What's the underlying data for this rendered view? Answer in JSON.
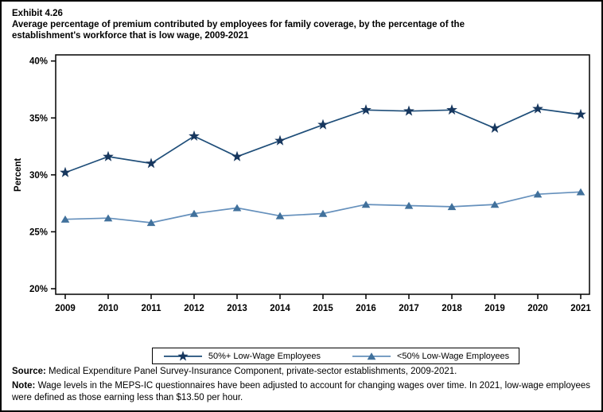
{
  "header": {
    "exhibit_label": "Exhibit 4.26",
    "title": "Average percentage of premium contributed by employees for family coverage, by the percentage of the establishment's workforce that is low wage, 2009-2021",
    "title_lines": [
      "Average percentage of premium contributed by employees for family coverage, by the percentage of the",
      "establishment's workforce that is low wage, 2009-2021"
    ]
  },
  "chart_data": {
    "type": "line",
    "x": [
      2009,
      2010,
      2011,
      2012,
      2013,
      2014,
      2015,
      2016,
      2017,
      2018,
      2019,
      2020,
      2021
    ],
    "series": [
      {
        "name": "50%+ Low-Wage Employees",
        "marker": "star",
        "line_color": "#1f4e79",
        "marker_color": "#17375e",
        "values": [
          30.2,
          31.6,
          31.0,
          33.4,
          31.6,
          33.0,
          34.4,
          35.7,
          35.6,
          35.7,
          34.1,
          35.8,
          35.3
        ]
      },
      {
        "name": "<50% Low-Wage Employees",
        "marker": "triangle",
        "line_color": "#6590bc",
        "marker_color": "#41719c",
        "values": [
          26.1,
          26.2,
          25.8,
          26.6,
          27.1,
          26.4,
          26.6,
          27.4,
          27.3,
          27.2,
          27.4,
          28.3,
          28.5
        ]
      }
    ],
    "xlabel": "",
    "ylabel": "Percent",
    "ylim": [
      20,
      40
    ],
    "yticks": [
      20,
      25,
      30,
      35,
      40
    ],
    "ytick_suffix": "%",
    "grid": false,
    "legend_position": "bottom-center"
  },
  "footer": {
    "source_label": "Source:",
    "source_text": " Medical Expenditure Panel Survey-Insurance Component, private-sector establishments, 2009-2021.",
    "note_label": "Note:",
    "note_text": " Wage levels in the MEPS-IC questionnaires have been adjusted to account for changing wages over time.  In 2021, low-wage employees were defined as those earning less than $13.50 per hour."
  }
}
